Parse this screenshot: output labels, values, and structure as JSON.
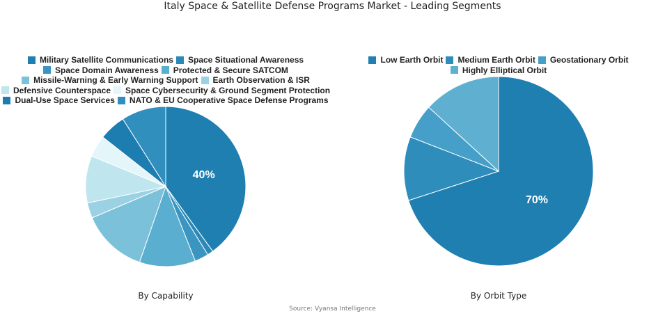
{
  "title": "Italy Space & Satellite Defense Programs Market - Leading Segments",
  "source": "Source: Vyansa Intelligence",
  "chart_data": [
    {
      "type": "pie",
      "subtitle": "By Capability",
      "legend_placement": "top",
      "categories": [
        "Military Satellite Communications",
        "Space Situational Awareness",
        "Space Domain Awareness",
        "Protected & Secure SATCOM",
        "Missile-Warning & Early Warning Support",
        "Earth Observation & ISR",
        "Defensive Counterspace",
        "Space Cybersecurity & Ground Segment Protection",
        "Dual-Use Space Services",
        "NATO & EU Cooperative Space Defense Programs"
      ],
      "values": [
        40,
        1.2,
        2.8,
        11.3,
        13.3,
        3.1,
        9.5,
        4.4,
        5.4,
        9.0
      ],
      "colors": [
        "#1f7fb0",
        "#2b89b8",
        "#3a96c1",
        "#5aaecf",
        "#7cc1da",
        "#9bd2e3",
        "#bfe6ee",
        "#e4f6fa",
        "#1d7db0",
        "#318fbd"
      ],
      "data_labels": [
        "40%",
        "",
        "",
        "",
        "",
        "",
        "",
        "",
        "",
        ""
      ]
    },
    {
      "type": "pie",
      "subtitle": "By Orbit Type",
      "legend_placement": "top",
      "categories": [
        "Low Earth Orbit",
        "Medium Earth Orbit",
        "Geostationary Orbit",
        "Highly Elliptical Orbit"
      ],
      "values": [
        70,
        10.9,
        5.9,
        13.2
      ],
      "colors": [
        "#1f7fb0",
        "#2f8dbc",
        "#459fc8",
        "#5fb0d0"
      ],
      "data_labels": [
        "70%",
        "",
        "",
        ""
      ]
    }
  ]
}
